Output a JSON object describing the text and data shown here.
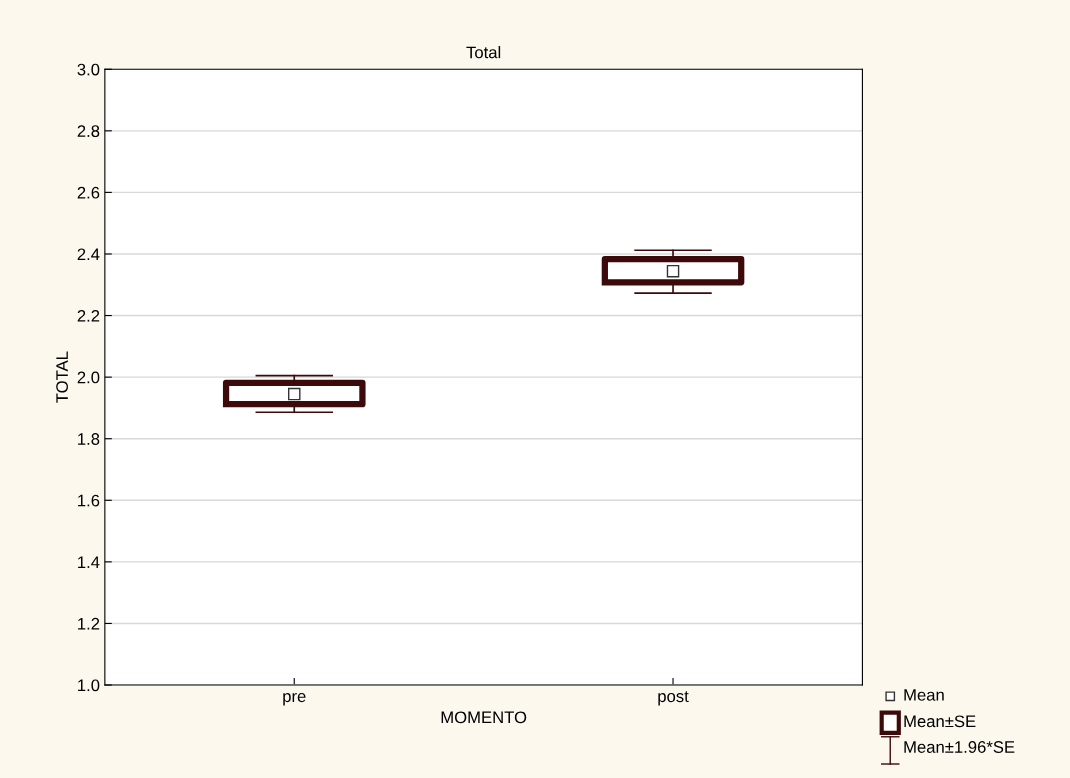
{
  "chart_data": {
    "type": "box",
    "title": "Total",
    "xlabel": "MOMENTO",
    "ylabel": "TOTAL",
    "categories": [
      "pre",
      "post"
    ],
    "boxes": [
      {
        "low": 1.886,
        "q1": 1.912,
        "median": 1.945,
        "q3": 1.981,
        "high": 2.005
      },
      {
        "low": 2.273,
        "q1": 2.308,
        "median": 2.344,
        "q3": 2.383,
        "high": 2.412
      }
    ],
    "color": "#3c0a0a",
    "ylim": [
      1.0,
      3.0
    ],
    "yticks": [
      {
        "value": 1.0,
        "label": "1.0"
      },
      {
        "value": 1.2,
        "label": "1.2"
      },
      {
        "value": 1.4,
        "label": "1.4"
      },
      {
        "value": 1.6,
        "label": "1.6"
      },
      {
        "value": 1.8,
        "label": "1.8"
      },
      {
        "value": 2.0,
        "label": "2.0"
      },
      {
        "value": 2.2,
        "label": "2.2"
      },
      {
        "value": 2.4,
        "label": "2.4"
      },
      {
        "value": 2.6,
        "label": "2.6"
      },
      {
        "value": 2.8,
        "label": "2.8"
      },
      {
        "value": 3.0,
        "label": "3.0"
      }
    ],
    "grid": "y",
    "annotations": [
      "Mean",
      "Mean±SE",
      "Mean±1.96*SE"
    ]
  }
}
